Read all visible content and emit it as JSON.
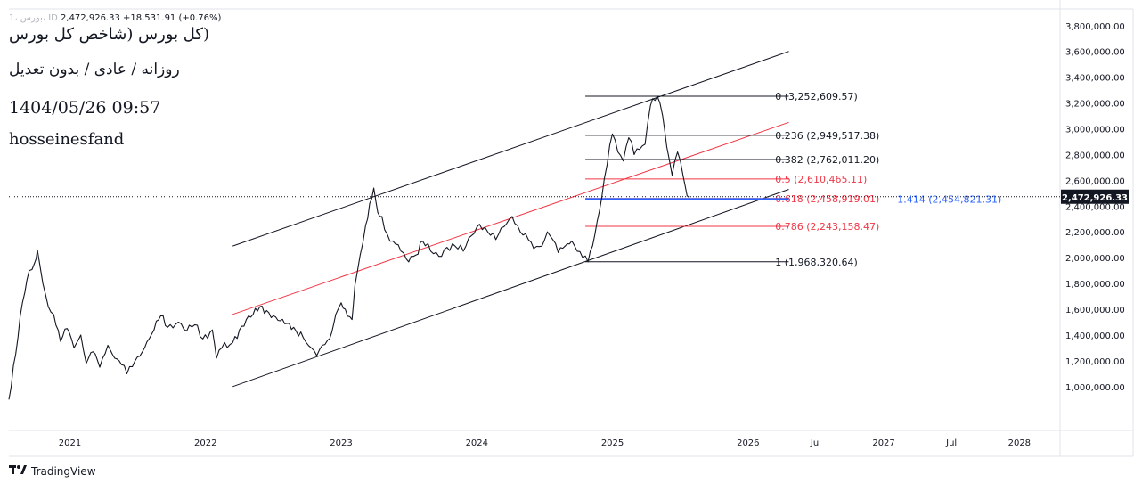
{
  "header": {
    "symbol_line_faded": "1، بورس، ID",
    "symbol_price": "2,472,926.33",
    "symbol_change": "+18,531.91",
    "symbol_change_pct": "(+0.76%)",
    "title": "(کل بورس (شاخص کل بورس",
    "subtitle": "روزانه / عادی / بدون تعدیل",
    "datetime": "1404/05/26 09:57",
    "author": "hosseinesfand"
  },
  "brand": {
    "name": "TradingView",
    "logo_icon": "tradingview-logo-icon"
  },
  "chart_data": {
    "type": "line",
    "xlabel": "",
    "ylabel": "",
    "x_tick_labels": [
      "2021",
      "2022",
      "2023",
      "2024",
      "2025",
      "2026",
      "Jul",
      "2027",
      "Jul",
      "2028"
    ],
    "y_ticks": [
      1000000,
      1200000,
      1400000,
      1600000,
      1800000,
      2000000,
      2200000,
      2400000,
      2600000,
      2800000,
      3000000,
      3200000,
      3400000,
      3600000,
      3800000
    ],
    "y_tick_labels": [
      "1,000,000.00",
      "1,200,000.00",
      "1,400,000.00",
      "1,600,000.00",
      "1,800,000.00",
      "2,000,000.00",
      "2,200,000.00",
      "2,400,000.00",
      "2,600,000.00",
      "2,800,000.00",
      "3,000,000.00",
      "3,200,000.00",
      "3,400,000.00",
      "3,600,000.00",
      "3,800,000.00"
    ],
    "ylim": [
      660000,
      3930000
    ],
    "xlim": [
      2020.55,
      2028.3
    ],
    "grid": false,
    "last_price": 2472926.33,
    "last_price_label": "2,472,926.33",
    "series": [
      {
        "color": "#131722",
        "points": [
          [
            2020.55,
            900000
          ],
          [
            2020.6,
            1250000
          ],
          [
            2020.65,
            1650000
          ],
          [
            2020.7,
            1900000
          ],
          [
            2020.74,
            1960000
          ],
          [
            2020.76,
            2060000
          ],
          [
            2020.8,
            1800000
          ],
          [
            2020.84,
            1620000
          ],
          [
            2020.88,
            1560000
          ],
          [
            2020.93,
            1350000
          ],
          [
            2020.98,
            1450000
          ],
          [
            2021.03,
            1300000
          ],
          [
            2021.08,
            1400000
          ],
          [
            2021.12,
            1180000
          ],
          [
            2021.17,
            1270000
          ],
          [
            2021.22,
            1150000
          ],
          [
            2021.28,
            1320000
          ],
          [
            2021.33,
            1220000
          ],
          [
            2021.38,
            1170000
          ],
          [
            2021.42,
            1100000
          ],
          [
            2021.48,
            1200000
          ],
          [
            2021.55,
            1300000
          ],
          [
            2021.62,
            1440000
          ],
          [
            2021.67,
            1550000
          ],
          [
            2021.72,
            1460000
          ],
          [
            2021.8,
            1500000
          ],
          [
            2021.86,
            1430000
          ],
          [
            2021.92,
            1480000
          ],
          [
            2021.98,
            1370000
          ],
          [
            2022.05,
            1440000
          ],
          [
            2022.08,
            1220000
          ],
          [
            2022.12,
            1300000
          ],
          [
            2022.2,
            1340000
          ],
          [
            2022.25,
            1440000
          ],
          [
            2022.3,
            1520000
          ],
          [
            2022.35,
            1560000
          ],
          [
            2022.4,
            1620000
          ],
          [
            2022.45,
            1590000
          ],
          [
            2022.5,
            1550000
          ],
          [
            2022.55,
            1510000
          ],
          [
            2022.6,
            1490000
          ],
          [
            2022.65,
            1460000
          ],
          [
            2022.72,
            1380000
          ],
          [
            2022.78,
            1300000
          ],
          [
            2022.82,
            1240000
          ],
          [
            2022.86,
            1320000
          ],
          [
            2022.9,
            1360000
          ],
          [
            2022.93,
            1420000
          ],
          [
            2022.96,
            1560000
          ],
          [
            2023.0,
            1650000
          ],
          [
            2023.03,
            1600000
          ],
          [
            2023.08,
            1520000
          ],
          [
            2023.1,
            1780000
          ],
          [
            2023.14,
            2020000
          ],
          [
            2023.18,
            2250000
          ],
          [
            2023.21,
            2420000
          ],
          [
            2023.24,
            2540000
          ],
          [
            2023.27,
            2350000
          ],
          [
            2023.3,
            2320000
          ],
          [
            2023.34,
            2180000
          ],
          [
            2023.38,
            2130000
          ],
          [
            2023.42,
            2100000
          ],
          [
            2023.48,
            1990000
          ],
          [
            2023.55,
            2020000
          ],
          [
            2023.6,
            2130000
          ],
          [
            2023.66,
            2050000
          ],
          [
            2023.72,
            2010000
          ],
          [
            2023.78,
            2080000
          ],
          [
            2023.84,
            2090000
          ],
          [
            2023.9,
            2050000
          ],
          [
            2023.96,
            2170000
          ],
          [
            2024.02,
            2260000
          ],
          [
            2024.08,
            2200000
          ],
          [
            2024.14,
            2140000
          ],
          [
            2024.2,
            2240000
          ],
          [
            2024.26,
            2320000
          ],
          [
            2024.32,
            2200000
          ],
          [
            2024.38,
            2140000
          ],
          [
            2024.42,
            2070000
          ],
          [
            2024.48,
            2090000
          ],
          [
            2024.52,
            2200000
          ],
          [
            2024.56,
            2140000
          ],
          [
            2024.6,
            2040000
          ],
          [
            2024.65,
            2090000
          ],
          [
            2024.7,
            2130000
          ],
          [
            2024.74,
            2050000
          ],
          [
            2024.78,
            2000000
          ],
          [
            2024.82,
            1968320
          ],
          [
            2024.87,
            2180000
          ],
          [
            2024.92,
            2460000
          ],
          [
            2024.96,
            2720000
          ],
          [
            2025.0,
            2960000
          ],
          [
            2025.04,
            2820000
          ],
          [
            2025.08,
            2750000
          ],
          [
            2025.12,
            2930000
          ],
          [
            2025.16,
            2800000
          ],
          [
            2025.2,
            2840000
          ],
          [
            2025.24,
            2880000
          ],
          [
            2025.28,
            3180000
          ],
          [
            2025.33,
            3252609
          ],
          [
            2025.37,
            3100000
          ],
          [
            2025.4,
            2860000
          ],
          [
            2025.44,
            2640000
          ],
          [
            2025.48,
            2820000
          ],
          [
            2025.52,
            2640000
          ],
          [
            2025.55,
            2480000
          ],
          [
            2025.57,
            2472926
          ]
        ]
      }
    ],
    "trendlines": [
      {
        "name": "upper-channel-line",
        "color": "#131722",
        "from": [
          2022.2,
          2090000
        ],
        "to": [
          2026.3,
          3600000
        ]
      },
      {
        "name": "median-channel-line",
        "color": "#f23645",
        "from": [
          2022.2,
          1560000
        ],
        "to": [
          2026.3,
          3050000
        ]
      },
      {
        "name": "lower-channel-line",
        "color": "#131722",
        "from": [
          2022.2,
          1000000
        ],
        "to": [
          2026.3,
          2530000
        ]
      }
    ],
    "fib_retracement": {
      "x_range": [
        2024.8,
        2026.3
      ],
      "label_x": 2026.2,
      "levels": [
        {
          "ratio": "0",
          "price": 3252609.57,
          "label": "0 (3,252,609.57)",
          "color": "#131722"
        },
        {
          "ratio": "0.236",
          "price": 2949517.38,
          "label": "0.236 (2,949,517.38)",
          "color": "#131722"
        },
        {
          "ratio": "0.382",
          "price": 2762011.2,
          "label": "0.382 (2,762,011.20)",
          "color": "#131722"
        },
        {
          "ratio": "0.5",
          "price": 2610465.11,
          "label": "0.5 (2,610,465.11)",
          "color": "#f23645"
        },
        {
          "ratio": "0.618",
          "price": 2458919.01,
          "label": "0.618 (2,458,919.01)",
          "color": "#f23645"
        },
        {
          "ratio": "0.786",
          "price": 2243158.47,
          "label": "0.786 (2,243,158.47)",
          "color": "#f23645"
        },
        {
          "ratio": "1",
          "price": 1968320.64,
          "label": "1 (1,968,320.64)",
          "color": "#131722"
        }
      ]
    },
    "fib_extension": {
      "ratio": "1.414",
      "price": 2454821.31,
      "label": "1.414 (2,454,821.31)",
      "color": "#2962ff",
      "x_range": [
        2024.8,
        2026.3
      ],
      "label_x": 2027.1
    }
  }
}
